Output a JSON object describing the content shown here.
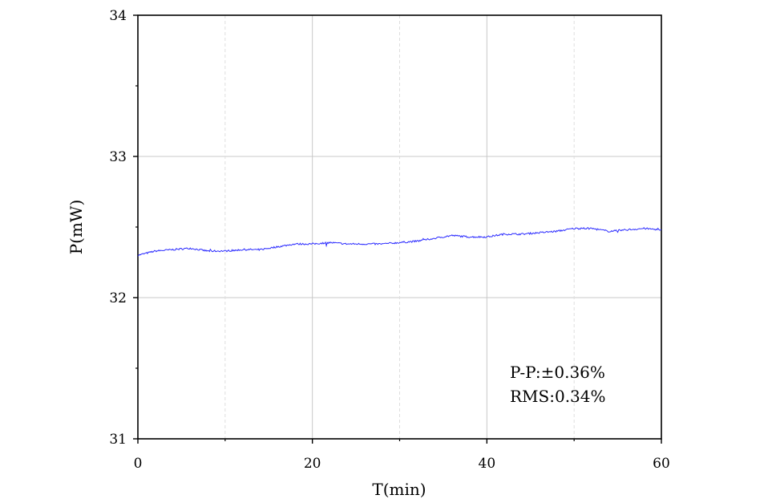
{
  "chart_data": {
    "type": "line",
    "title": "",
    "xlabel": "T(min)",
    "ylabel": "P(mW)",
    "xlim": [
      0,
      60
    ],
    "ylim": [
      31,
      34
    ],
    "xticks": [
      0,
      20,
      40,
      60
    ],
    "yticks": [
      31,
      32,
      33,
      34
    ],
    "xtick_labels": [
      "0",
      "20",
      "40",
      "60"
    ],
    "ytick_labels": [
      "31",
      "32",
      "33",
      "34"
    ],
    "grid": true,
    "line_color": "#2b2bff",
    "annotations": [
      "P-P:±0.36%",
      "RMS:0.34%"
    ],
    "series": [
      {
        "x": [
          0,
          2,
          4,
          6,
          8,
          10,
          12,
          14,
          16,
          18,
          20,
          22,
          24,
          26,
          28,
          30,
          32,
          34,
          36,
          38,
          40,
          42,
          44,
          46,
          48,
          50,
          52,
          54,
          56,
          58,
          60
        ],
        "values": [
          32.3,
          32.33,
          32.34,
          32.35,
          32.33,
          32.33,
          32.34,
          32.34,
          32.36,
          32.38,
          32.38,
          32.39,
          32.38,
          32.38,
          32.38,
          32.39,
          32.4,
          32.42,
          32.44,
          32.43,
          32.43,
          32.45,
          32.45,
          32.46,
          32.47,
          32.49,
          32.49,
          32.47,
          32.48,
          32.49,
          32.48
        ]
      }
    ]
  }
}
